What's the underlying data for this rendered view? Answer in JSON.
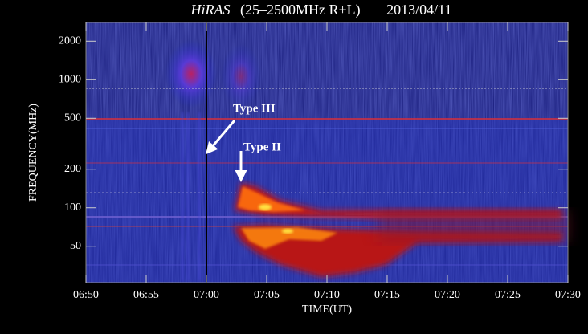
{
  "chart_data": {
    "type": "spectrogram",
    "title_name": "HiRAS",
    "title_band": "(25–2500MHz R+L)",
    "title_date": "2013/04/11",
    "xlabel": "TIME(UT)",
    "ylabel": "FREQUENCY(MHz)",
    "xlim": [
      410,
      450
    ],
    "xticks": [
      {
        "value": 410,
        "label": "06:50"
      },
      {
        "value": 415,
        "label": "06:55"
      },
      {
        "value": 420,
        "label": "07:00"
      },
      {
        "value": 425,
        "label": "07:05"
      },
      {
        "value": 430,
        "label": "07:10"
      },
      {
        "value": 435,
        "label": "07:15"
      },
      {
        "value": 440,
        "label": "07:20"
      },
      {
        "value": 445,
        "label": "07:25"
      },
      {
        "value": 450,
        "label": "07:30"
      }
    ],
    "ylim": [
      26,
      2800
    ],
    "log_y": true,
    "yticks": [
      50,
      100,
      200,
      500,
      1000,
      2000
    ],
    "marker_x": 420,
    "annotations": [
      "Type III",
      "Type II"
    ]
  }
}
